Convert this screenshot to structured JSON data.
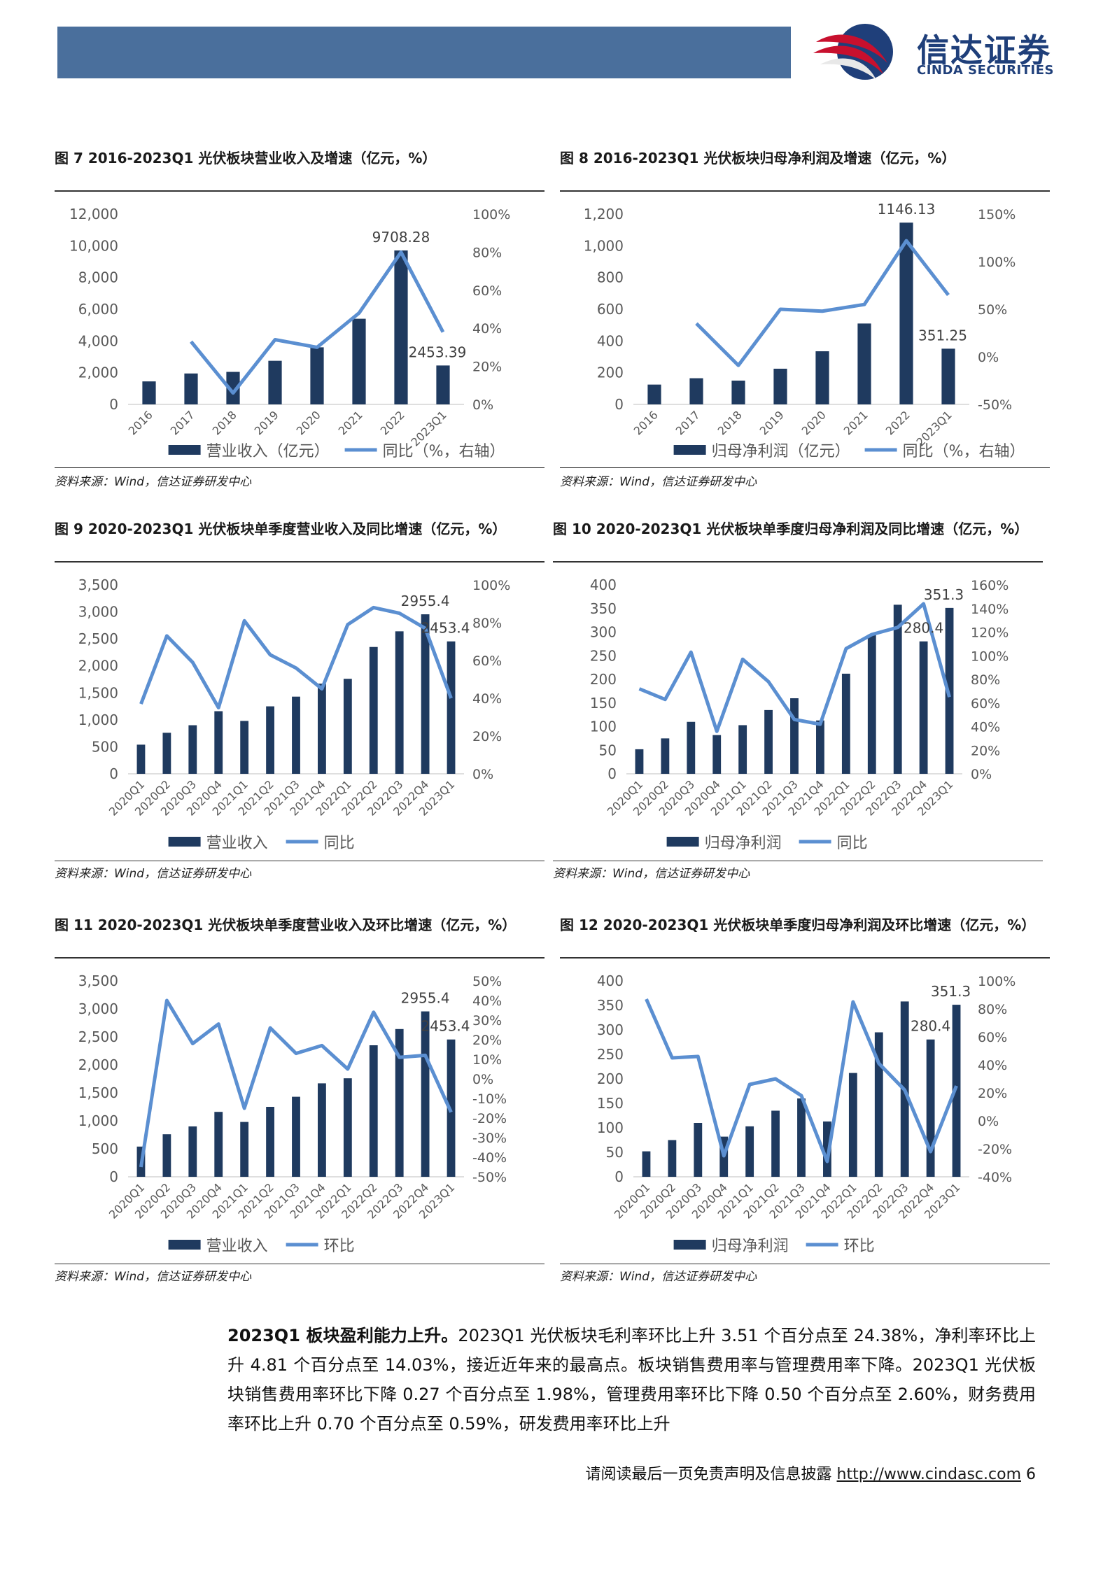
{
  "header": {
    "logo_cn": "信达证券",
    "logo_en": "CINDA SECURITIES",
    "colors": {
      "bar": "#4a6f9c",
      "logo_red": "#c8102e",
      "logo_blue": "#1f3f7a"
    }
  },
  "source_text": "资料来源：Wind，信达证券研发中心",
  "panels": [
    {
      "title": "图 7 2016-2023Q1 光伏板块营业收入及增速（亿元，%）",
      "chart_data": {
        "type": "bar",
        "categories": [
          "2016",
          "2017",
          "2018",
          "2019",
          "2020",
          "2021",
          "2022",
          "2023Q1"
        ],
        "series": [
          {
            "name": "营业收入（亿元）",
            "type": "bar",
            "axis": "left",
            "values": [
              1450,
              1950,
              2050,
              2750,
              3600,
              5400,
              9708.28,
              2453.39
            ]
          },
          {
            "name": "同比（%，右轴）",
            "type": "line",
            "axis": "right",
            "values": [
              null,
              33,
              6,
              34,
              30,
              48,
              80,
              38
            ]
          }
        ],
        "yticks_left": [
          "0",
          "2,000",
          "4,000",
          "6,000",
          "8,000",
          "10,000",
          "12,000"
        ],
        "ylim_left": [
          0,
          12000
        ],
        "yticks_right": [
          "0%",
          "20%",
          "40%",
          "60%",
          "80%",
          "100%"
        ],
        "ylim_right": [
          0,
          100
        ],
        "annotations": [
          {
            "index": 6,
            "text": "9708.28"
          },
          {
            "index": 7,
            "text": "2453.39"
          }
        ],
        "legend": "bottom",
        "bar_color": "#1f3a5f",
        "line_color": "#5b8fd1"
      }
    },
    {
      "title": "图 8 2016-2023Q1 光伏板块归母净利润及增速（亿元，%）",
      "chart_data": {
        "type": "bar",
        "categories": [
          "2016",
          "2017",
          "2018",
          "2019",
          "2020",
          "2021",
          "2022",
          "2023Q1"
        ],
        "series": [
          {
            "name": "归母净利润（亿元）",
            "type": "bar",
            "axis": "left",
            "values": [
              125,
              165,
              150,
              225,
              335,
              510,
              1146.13,
              351.25
            ]
          },
          {
            "name": "同比（%，右轴）",
            "type": "line",
            "axis": "right",
            "values": [
              null,
              35,
              -9,
              50,
              48,
              55,
              122,
              65
            ]
          }
        ],
        "yticks_left": [
          "0",
          "200",
          "400",
          "600",
          "800",
          "1,000",
          "1,200"
        ],
        "ylim_left": [
          0,
          1200
        ],
        "yticks_right": [
          "-50%",
          "0%",
          "50%",
          "100%",
          "150%"
        ],
        "ylim_right": [
          -50,
          150
        ],
        "annotations": [
          {
            "index": 6,
            "text": "1146.13"
          },
          {
            "index": 7,
            "text": "351.25"
          }
        ],
        "legend": "bottom",
        "bar_color": "#1f3a5f",
        "line_color": "#5b8fd1"
      }
    },
    {
      "title": "图 9 2020-2023Q1 光伏板块单季度营业收入及同比增速（亿元，%）",
      "chart_data": {
        "type": "bar",
        "categories": [
          "2020Q1",
          "2020Q2",
          "2020Q3",
          "2020Q4",
          "2021Q1",
          "2021Q2",
          "2021Q3",
          "2021Q4",
          "2022Q1",
          "2022Q2",
          "2022Q3",
          "2022Q4",
          "2023Q1"
        ],
        "series": [
          {
            "name": "营业收入",
            "type": "bar",
            "axis": "left",
            "values": [
              540,
              760,
              900,
              1160,
              980,
              1250,
              1430,
              1670,
              1760,
              2350,
              2640,
              2955.4,
              2453.4
            ]
          },
          {
            "name": "同比",
            "type": "line",
            "axis": "right",
            "values": [
              37,
              73,
              59,
              35,
              81,
              63,
              56,
              45,
              79,
              88,
              85,
              77,
              40
            ]
          }
        ],
        "yticks_left": [
          "0",
          "500",
          "1,000",
          "1,500",
          "2,000",
          "2,500",
          "3,000",
          "3,500"
        ],
        "ylim_left": [
          0,
          3500
        ],
        "yticks_right": [
          "0%",
          "20%",
          "40%",
          "60%",
          "80%",
          "100%"
        ],
        "ylim_right": [
          0,
          100
        ],
        "annotations": [
          {
            "index": 11,
            "text": "2955.4"
          },
          {
            "index": 12,
            "text": "2453.4"
          }
        ],
        "legend": "bottom",
        "bar_color": "#1f3a5f",
        "line_color": "#5b8fd1"
      }
    },
    {
      "title": "图 10 2020-2023Q1 光伏板块单季度归母净利润及同比增速（亿元，%）",
      "chart_data": {
        "type": "bar",
        "categories": [
          "2020Q1",
          "2020Q2",
          "2020Q3",
          "2020Q4",
          "2021Q1",
          "2021Q2",
          "2021Q3",
          "2021Q4",
          "2022Q1",
          "2022Q2",
          "2022Q3",
          "2022Q4",
          "2023Q1"
        ],
        "series": [
          {
            "name": "归母净利润",
            "type": "bar",
            "axis": "left",
            "values": [
              52,
              75,
              110,
              82,
              103,
              135,
              160,
              113,
              212,
              295,
              358,
              280.4,
              351.3
            ]
          },
          {
            "name": "同比",
            "type": "line",
            "axis": "right",
            "values": [
              72,
              63,
              103,
              36,
              97,
              78,
              46,
              42,
              106,
              118,
              124,
              144,
              65
            ]
          }
        ],
        "yticks_left": [
          "0",
          "50",
          "100",
          "150",
          "200",
          "250",
          "300",
          "350",
          "400"
        ],
        "ylim_left": [
          0,
          400
        ],
        "yticks_right": [
          "0%",
          "20%",
          "40%",
          "60%",
          "80%",
          "100%",
          "120%",
          "140%",
          "160%"
        ],
        "ylim_right": [
          0,
          160
        ],
        "annotations": [
          {
            "index": 11,
            "text": "280.4"
          },
          {
            "index": 12,
            "text": "351.3"
          }
        ],
        "legend": "bottom",
        "bar_color": "#1f3a5f",
        "line_color": "#5b8fd1"
      }
    },
    {
      "title": "图 11 2020-2023Q1 光伏板块单季度营业收入及环比增速（亿元，%）",
      "chart_data": {
        "type": "bar",
        "categories": [
          "2020Q1",
          "2020Q2",
          "2020Q3",
          "2020Q4",
          "2021Q1",
          "2021Q2",
          "2021Q3",
          "2021Q4",
          "2022Q1",
          "2022Q2",
          "2022Q3",
          "2022Q4",
          "2023Q1"
        ],
        "series": [
          {
            "name": "营业收入",
            "type": "bar",
            "axis": "left",
            "values": [
              540,
              760,
              900,
              1160,
              980,
              1250,
              1430,
              1670,
              1760,
              2350,
              2640,
              2955.4,
              2453.4
            ]
          },
          {
            "name": "环比",
            "type": "line",
            "axis": "right",
            "values": [
              -45,
              40,
              18,
              28,
              -15,
              26,
              13,
              17,
              5,
              34,
              11,
              12,
              -17
            ]
          }
        ],
        "yticks_left": [
          "0",
          "500",
          "1,000",
          "1,500",
          "2,000",
          "2,500",
          "3,000",
          "3,500"
        ],
        "ylim_left": [
          0,
          3500
        ],
        "yticks_right": [
          "-50%",
          "-40%",
          "-30%",
          "-20%",
          "-10%",
          "0%",
          "10%",
          "20%",
          "30%",
          "40%",
          "50%"
        ],
        "ylim_right": [
          -50,
          50
        ],
        "annotations": [
          {
            "index": 11,
            "text": "2955.4"
          },
          {
            "index": 12,
            "text": "2453.4"
          }
        ],
        "legend": "bottom",
        "bar_color": "#1f3a5f",
        "line_color": "#5b8fd1"
      }
    },
    {
      "title": "图 12 2020-2023Q1 光伏板块单季度归母净利润及环比增速（亿元，%）",
      "chart_data": {
        "type": "bar",
        "categories": [
          "2020Q1",
          "2020Q2",
          "2020Q3",
          "2020Q4",
          "2021Q1",
          "2021Q2",
          "2021Q3",
          "2021Q4",
          "2022Q1",
          "2022Q2",
          "2022Q3",
          "2022Q4",
          "2023Q1"
        ],
        "series": [
          {
            "name": "归母净利润",
            "type": "bar",
            "axis": "left",
            "values": [
              52,
              75,
              110,
              82,
              103,
              135,
              160,
              113,
              212,
              295,
              358,
              280.4,
              351.3
            ]
          },
          {
            "name": "环比",
            "type": "line",
            "axis": "right",
            "values": [
              87,
              45,
              46,
              -25,
              26,
              30,
              18,
              -29,
              85,
              41,
              22,
              -22,
              25
            ]
          }
        ],
        "yticks_left": [
          "0",
          "50",
          "100",
          "150",
          "200",
          "250",
          "300",
          "350",
          "400"
        ],
        "ylim_left": [
          0,
          400
        ],
        "yticks_right": [
          "-40%",
          "-20%",
          "0%",
          "20%",
          "40%",
          "60%",
          "80%",
          "100%"
        ],
        "ylim_right": [
          -40,
          100
        ],
        "annotations": [
          {
            "index": 11,
            "text": "280.4"
          },
          {
            "index": 12,
            "text": "351.3"
          }
        ],
        "legend": "bottom",
        "bar_color": "#1f3a5f",
        "line_color": "#5b8fd1"
      }
    }
  ],
  "paragraph": {
    "bold_lead": "2023Q1 板块盈利能力上升。",
    "body": "2023Q1 光伏板块毛利率环比上升 3.51 个百分点至 24.38%，净利率环比上升 4.81 个百分点至 14.03%，接近近年来的最高点。板块销售费用率与管理费用率下降。2023Q1 光伏板块销售费用率环比下降 0.27 个百分点至 1.98%，管理费用率环比下降 0.50 个百分点至 2.60%，财务费用率环比上升 0.70 个百分点至 0.59%，研发费用率环比上升"
  },
  "footer": {
    "disclaimer": "请阅读最后一页免责声明及信息披露",
    "url": "http://www.cindasc.com",
    "page_number": "6"
  }
}
